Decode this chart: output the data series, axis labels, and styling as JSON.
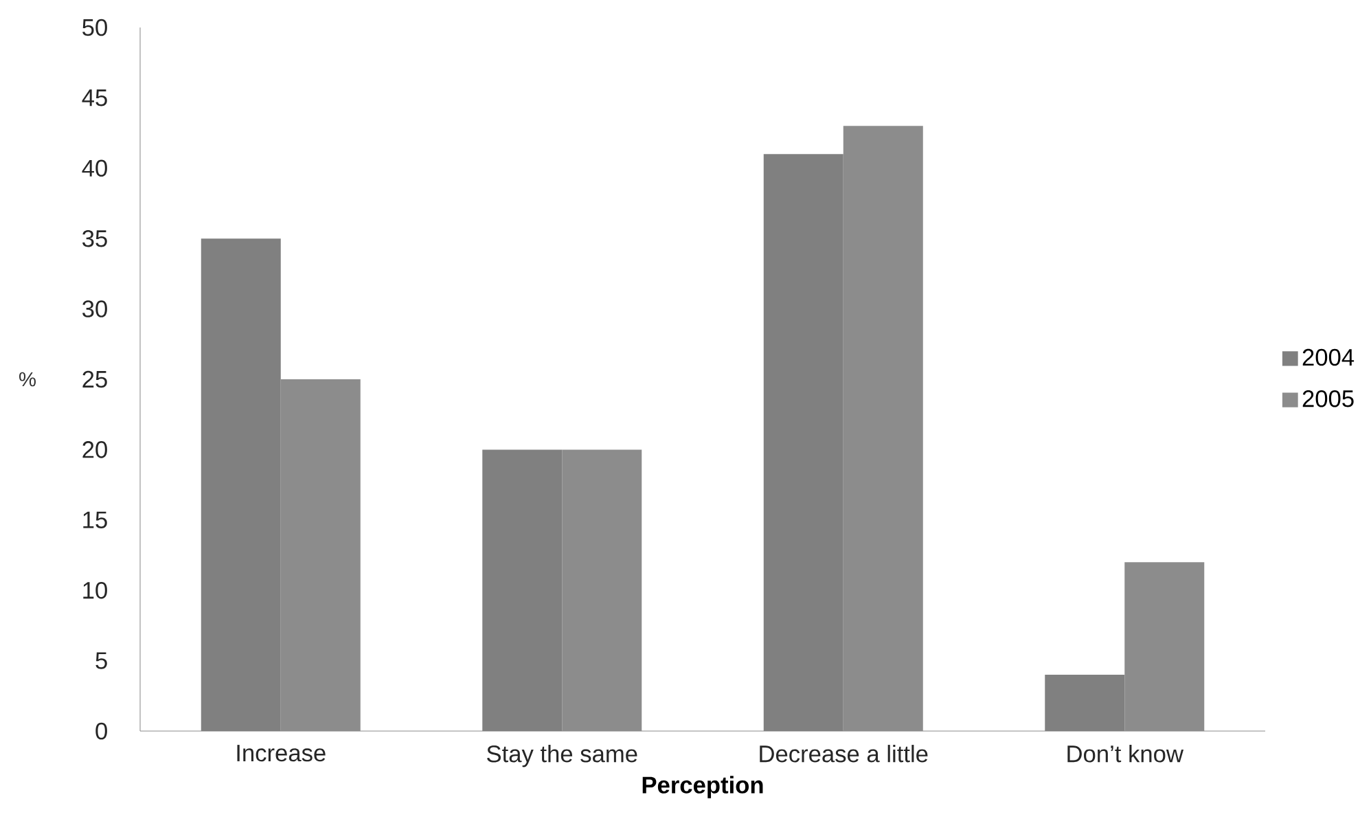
{
  "chart_data": {
    "type": "bar",
    "xlabel": "Perception",
    "ylabel": "%",
    "categories": [
      "Increase",
      "Stay the same",
      "Decrease a little",
      "Don’t know"
    ],
    "series": [
      {
        "name": "2004",
        "color": "#808080",
        "values": [
          35,
          20,
          41,
          4
        ]
      },
      {
        "name": "2005",
        "color": "#8c8c8c",
        "values": [
          25,
          20,
          43,
          12
        ]
      }
    ],
    "ylim": [
      0,
      50
    ],
    "yticks": [
      0,
      5,
      10,
      15,
      20,
      25,
      30,
      35,
      40,
      45,
      50
    ],
    "legend": "right"
  }
}
